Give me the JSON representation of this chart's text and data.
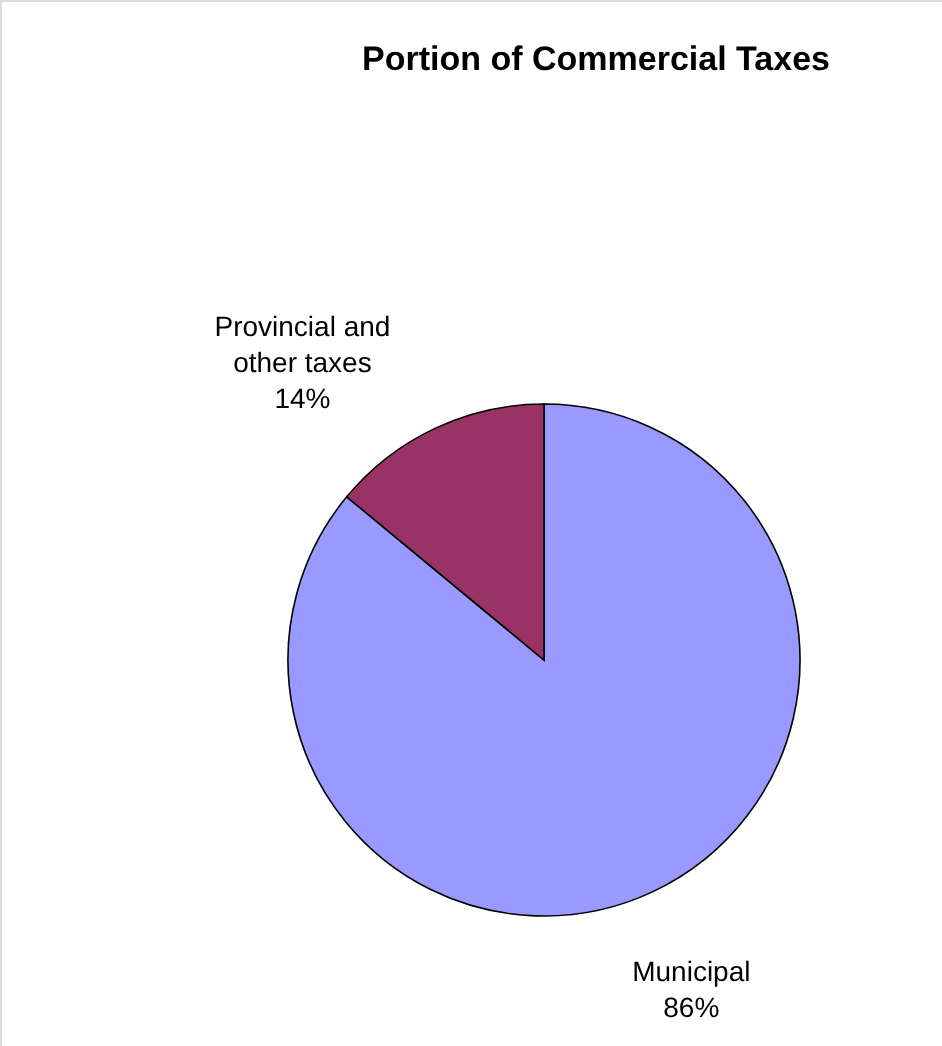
{
  "chart_data": {
    "type": "pie",
    "title": "Portion of Commercial Taxes",
    "categories": [
      "Municipal",
      "Provincial and other taxes"
    ],
    "values": [
      86,
      14
    ],
    "colors": [
      "#9999ff",
      "#993366"
    ],
    "value_labels": [
      "86%",
      "14%"
    ]
  }
}
